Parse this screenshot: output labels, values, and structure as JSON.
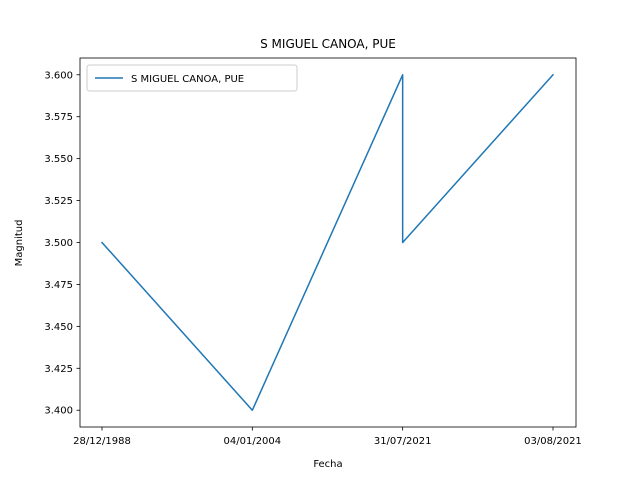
{
  "chart_data": {
    "type": "line",
    "title": "S MIGUEL CANOA, PUE",
    "xlabel": "Fecha",
    "ylabel": "Magnitud",
    "categories": [
      "28/12/1988",
      "04/01/2004",
      "31/07/2021",
      "31/07/2021",
      "03/08/2021"
    ],
    "x_ticks": [
      "28/12/1988",
      "04/01/2004",
      "31/07/2021",
      "03/08/2021"
    ],
    "series": [
      {
        "name": "S MIGUEL CANOA, PUE",
        "values": [
          3.5,
          3.4,
          3.6,
          3.5,
          3.6
        ],
        "color": "#1f77b4"
      }
    ],
    "ylim": [
      3.39,
      3.61
    ],
    "y_ticks": [
      "3.400",
      "3.425",
      "3.450",
      "3.475",
      "3.500",
      "3.525",
      "3.550",
      "3.575",
      "3.600"
    ],
    "legend": "top-left",
    "grid": false
  }
}
